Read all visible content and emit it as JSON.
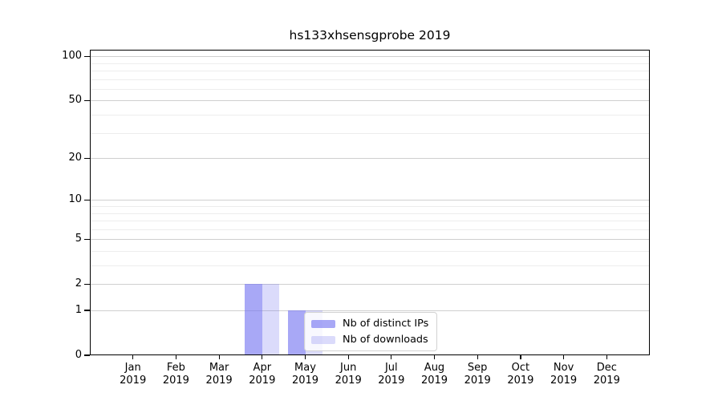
{
  "chart_data": {
    "type": "bar",
    "title": "hs133xhsensgprobe 2019",
    "categories": [
      "Jan",
      "Feb",
      "Mar",
      "Apr",
      "May",
      "Jun",
      "Jul",
      "Aug",
      "Sep",
      "Oct",
      "Nov",
      "Dec"
    ],
    "x_year_label": "2019",
    "series": [
      {
        "name": "Nb of distinct IPs",
        "color": "rgba(114,114,240,0.62)",
        "values": [
          0,
          0,
          0,
          2,
          1,
          0,
          0,
          0,
          0,
          0,
          0,
          0
        ]
      },
      {
        "name": "Nb of downloads",
        "color": "rgba(114,114,240,0.26)",
        "values": [
          0,
          0,
          0,
          2,
          1,
          0,
          0,
          0,
          0,
          0,
          0,
          0
        ]
      }
    ],
    "y_scale": "log1p",
    "y_ticks": [
      0,
      1,
      2,
      5,
      10,
      20,
      50,
      100
    ],
    "y_minor_gridlines": [
      3,
      4,
      6,
      7,
      8,
      9,
      30,
      40,
      60,
      70,
      80,
      90
    ],
    "ylim": [
      0,
      110.8
    ],
    "xlabel": "",
    "ylabel": "",
    "grid": "horizontal",
    "legend_position": "lower center",
    "colors": {
      "major_grid": "#cfcfcf",
      "minor_grid": "#ededed",
      "axis": "#000000",
      "background": "#ffffff"
    }
  }
}
